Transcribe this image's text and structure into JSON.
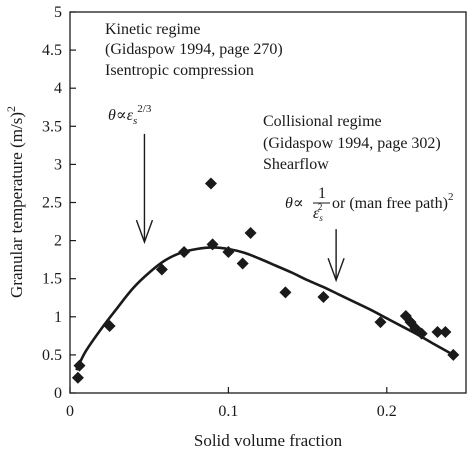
{
  "chart_data": {
    "type": "scatter",
    "xlabel": "Solid volume fraction",
    "ylabel": "Granular temperature (m/s)",
    "ylabel_sup": "2",
    "xlim": [
      0,
      0.25
    ],
    "ylim": [
      0,
      5
    ],
    "x_ticks": [
      0,
      0.1,
      0.2
    ],
    "x_tick_labels": [
      "0",
      "0.1",
      "0.2"
    ],
    "y_ticks": [
      0,
      0.5,
      1,
      1.5,
      2,
      2.5,
      3,
      3.5,
      4,
      4.5,
      5
    ],
    "y_tick_labels": [
      "0",
      "0.5",
      "1",
      "1.5",
      "2",
      "2.5",
      "3",
      "3.5",
      "4",
      "4.5",
      "5"
    ],
    "grid": false,
    "series": [
      {
        "kind": "points",
        "marker": "diamond",
        "x": [
          0.005,
          0.006,
          0.025,
          0.058,
          0.072,
          0.089,
          0.09,
          0.1,
          0.109,
          0.114,
          0.136,
          0.16,
          0.196,
          0.212,
          0.215,
          0.218,
          0.222,
          0.232,
          0.237,
          0.242
        ],
        "y": [
          0.2,
          0.36,
          0.88,
          1.62,
          1.85,
          2.75,
          1.95,
          1.85,
          1.7,
          2.1,
          1.32,
          1.26,
          0.93,
          1.01,
          0.93,
          0.85,
          0.78,
          0.8,
          0.8,
          0.5
        ]
      },
      {
        "kind": "fit-curve",
        "x": [
          0.004,
          0.01,
          0.02,
          0.03,
          0.04,
          0.05,
          0.06,
          0.07,
          0.08,
          0.09,
          0.1,
          0.11,
          0.12,
          0.13,
          0.14,
          0.15,
          0.16,
          0.17,
          0.18,
          0.19,
          0.2,
          0.21,
          0.22,
          0.23,
          0.242
        ],
        "y": [
          0.3,
          0.55,
          0.85,
          1.12,
          1.38,
          1.58,
          1.74,
          1.84,
          1.89,
          1.91,
          1.89,
          1.84,
          1.76,
          1.67,
          1.58,
          1.48,
          1.39,
          1.29,
          1.19,
          1.09,
          0.98,
          0.87,
          0.76,
          0.64,
          0.5
        ]
      }
    ],
    "annotations": [
      {
        "id": "kinetic",
        "lines": [
          "Kinetic regime",
          "(Gidaspow 1994, page 270)",
          "Isentropic compression"
        ],
        "formula_theta": "θ∝",
        "formula_eps": "ε",
        "formula_sub": "s",
        "formula_sup": "2/3",
        "arrow_x": 0.047,
        "arrow_y_top": 3.4,
        "arrow_y_bottom": 1.98
      },
      {
        "id": "collisional",
        "lines": [
          "Collisional regime",
          "(Gidaspow 1994, page 302)",
          "Shearflow"
        ],
        "formula_theta": "θ∝",
        "formula_num": "1",
        "formula_eps": "ε",
        "formula_sup": "2",
        "formula_sub": "s",
        "formula_tail": "or (man free path)",
        "formula_tail_sup": "2",
        "arrow_x": 0.168,
        "arrow_y_top": 2.15,
        "arrow_y_bottom": 1.48
      }
    ]
  }
}
